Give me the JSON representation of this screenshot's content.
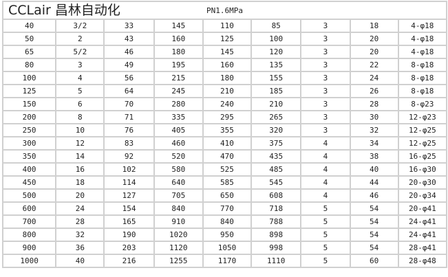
{
  "header": "PN1.6MPa",
  "rows": [
    [
      "40",
      "3/2",
      "33",
      "145",
      "110",
      "85",
      "3",
      "18",
      "4-φ18"
    ],
    [
      "50",
      "2",
      "43",
      "160",
      "125",
      "100",
      "3",
      "20",
      "4-φ18"
    ],
    [
      "65",
      "5/2",
      "46",
      "180",
      "145",
      "120",
      "3",
      "20",
      "4-φ18"
    ],
    [
      "80",
      "3",
      "49",
      "195",
      "160",
      "135",
      "3",
      "22",
      "8-φ18"
    ],
    [
      "100",
      "4",
      "56",
      "215",
      "180",
      "155",
      "3",
      "24",
      "8-φ18"
    ],
    [
      "125",
      "5",
      "64",
      "245",
      "210",
      "185",
      "3",
      "26",
      "8-φ18"
    ],
    [
      "150",
      "6",
      "70",
      "280",
      "240",
      "210",
      "3",
      "28",
      "8-φ23"
    ],
    [
      "200",
      "8",
      "71",
      "335",
      "295",
      "265",
      "3",
      "30",
      "12-φ23"
    ],
    [
      "250",
      "10",
      "76",
      "405",
      "355",
      "320",
      "3",
      "32",
      "12-φ25"
    ],
    [
      "300",
      "12",
      "83",
      "460",
      "410",
      "375",
      "4",
      "34",
      "12-φ25"
    ],
    [
      "350",
      "14",
      "92",
      "520",
      "470",
      "435",
      "4",
      "38",
      "16-φ25"
    ],
    [
      "400",
      "16",
      "102",
      "580",
      "525",
      "485",
      "4",
      "40",
      "16-φ30"
    ],
    [
      "450",
      "18",
      "114",
      "640",
      "585",
      "545",
      "4",
      "44",
      "20-φ30"
    ],
    [
      "500",
      "20",
      "127",
      "705",
      "650",
      "608",
      "4",
      "46",
      "20-φ34"
    ],
    [
      "600",
      "24",
      "154",
      "840",
      "770",
      "718",
      "5",
      "54",
      "20-φ41"
    ],
    [
      "700",
      "28",
      "165",
      "910",
      "840",
      "788",
      "5",
      "54",
      "24-φ41"
    ],
    [
      "800",
      "32",
      "190",
      "1020",
      "950",
      "898",
      "5",
      "54",
      "24-φ41"
    ],
    [
      "900",
      "36",
      "203",
      "1120",
      "1050",
      "998",
      "5",
      "54",
      "28-φ41"
    ],
    [
      "1000",
      "40",
      "216",
      "1255",
      "1170",
      "1110",
      "5",
      "60",
      "28-φ48"
    ]
  ],
  "watermark": "CCLair 昌林自动化"
}
